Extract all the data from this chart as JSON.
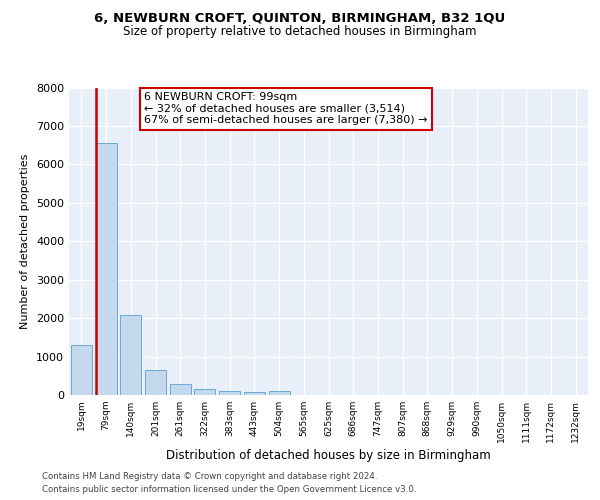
{
  "title1": "6, NEWBURN CROFT, QUINTON, BIRMINGHAM, B32 1QU",
  "title2": "Size of property relative to detached houses in Birmingham",
  "xlabel": "Distribution of detached houses by size in Birmingham",
  "ylabel": "Number of detached properties",
  "categories": [
    "19sqm",
    "79sqm",
    "140sqm",
    "201sqm",
    "261sqm",
    "322sqm",
    "383sqm",
    "443sqm",
    "504sqm",
    "565sqm",
    "625sqm",
    "686sqm",
    "747sqm",
    "807sqm",
    "868sqm",
    "929sqm",
    "990sqm",
    "1050sqm",
    "1111sqm",
    "1172sqm",
    "1232sqm"
  ],
  "values": [
    1300,
    6550,
    2075,
    650,
    290,
    145,
    95,
    80,
    115,
    0,
    0,
    0,
    0,
    0,
    0,
    0,
    0,
    0,
    0,
    0,
    0
  ],
  "bar_color": "#c5d9ee",
  "bar_edge_color": "#6aaad4",
  "vline_x": 0.575,
  "vline_color": "#cc0000",
  "annotation_line1": "6 NEWBURN CROFT: 99sqm",
  "annotation_line2": "← 32% of detached houses are smaller (3,514)",
  "annotation_line3": "67% of semi-detached houses are larger (7,380) →",
  "annotation_box_edge": "#cc0000",
  "ylim_max": 8000,
  "yticks": [
    0,
    1000,
    2000,
    3000,
    4000,
    5000,
    6000,
    7000,
    8000
  ],
  "bg_color": "#e8eff8",
  "grid_color": "#ffffff",
  "footer1": "Contains HM Land Registry data © Crown copyright and database right 2024.",
  "footer2": "Contains public sector information licensed under the Open Government Licence v3.0."
}
